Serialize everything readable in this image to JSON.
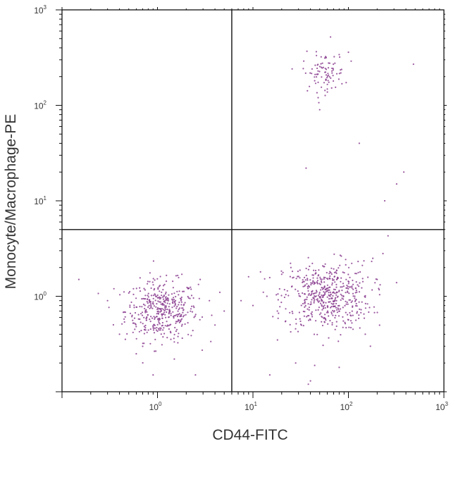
{
  "chart_data": {
    "type": "scatter",
    "title": "",
    "xlabel": "CD44-FITC",
    "ylabel": "Monocyte/Macrophage-PE",
    "x_scale": "log",
    "y_scale": "log",
    "xlim": [
      0.1,
      1000
    ],
    "ylim": [
      0.1,
      1000
    ],
    "x_ticks": [
      {
        "base": "10",
        "exp": "0",
        "value": 1
      },
      {
        "base": "10",
        "exp": "1",
        "value": 10
      },
      {
        "base": "10",
        "exp": "2",
        "value": 100
      },
      {
        "base": "10",
        "exp": "3",
        "value": 1000
      }
    ],
    "y_ticks": [
      {
        "base": "10",
        "exp": "0",
        "value": 1
      },
      {
        "base": "10",
        "exp": "1",
        "value": 10
      },
      {
        "base": "10",
        "exp": "2",
        "value": 100
      },
      {
        "base": "10",
        "exp": "3",
        "value": 1000
      }
    ],
    "quadrant_gate": {
      "x": 6,
      "y": 5
    },
    "grid": false,
    "legend": "none",
    "point_color": "#8a3d8f",
    "populations": [
      {
        "center": [
          1.1,
          0.7
        ],
        "count": 420
      },
      {
        "center": [
          60,
          1.0
        ],
        "count": 520
      },
      {
        "center": [
          55,
          220
        ],
        "count": 90
      }
    ],
    "points": [
      [
        0.15,
        1.5
      ],
      [
        0.3,
        0.9
      ],
      [
        0.35,
        1.2
      ],
      [
        0.4,
        0.4
      ],
      [
        2.5,
        0.15
      ],
      [
        3.5,
        0.9
      ],
      [
        1.8,
        1.7
      ],
      [
        2.8,
        1.5
      ],
      [
        0.6,
        0.25
      ],
      [
        0.9,
        0.15
      ],
      [
        1.5,
        0.22
      ],
      [
        4.0,
        0.5
      ],
      [
        5.0,
        0.7
      ],
      [
        4.5,
        1.1
      ],
      [
        7.5,
        0.9
      ],
      [
        9.0,
        1.6
      ],
      [
        10.0,
        0.8
      ],
      [
        12.0,
        1.8
      ],
      [
        14.0,
        1.0
      ],
      [
        18.0,
        0.7
      ],
      [
        20.0,
        1.7
      ],
      [
        25.0,
        2.0
      ],
      [
        150,
        0.4
      ],
      [
        180,
        2.5
      ],
      [
        200,
        1.5
      ],
      [
        170,
        0.3
      ],
      [
        80,
        0.18
      ],
      [
        40,
        0.13
      ],
      [
        28,
        0.2
      ],
      [
        260,
        4.3
      ],
      [
        230,
        2.8
      ],
      [
        15,
        0.15
      ],
      [
        38,
        0.12
      ],
      [
        22,
        0.55
      ],
      [
        36,
        22
      ],
      [
        130,
        40
      ],
      [
        380,
        20
      ],
      [
        320,
        15
      ],
      [
        240,
        10
      ],
      [
        480,
        270
      ],
      [
        80,
        340
      ],
      [
        100,
        360
      ],
      [
        65,
        520
      ],
      [
        50,
        90
      ]
    ]
  }
}
